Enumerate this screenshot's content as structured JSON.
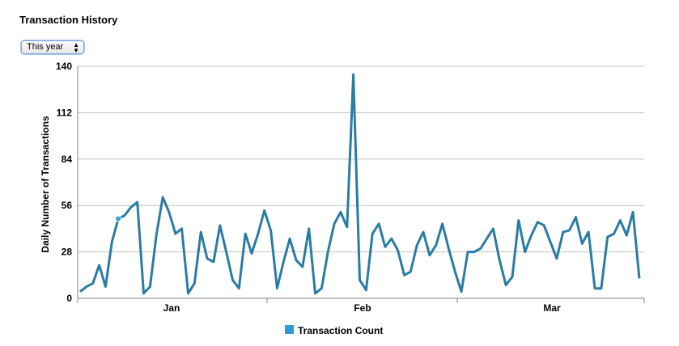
{
  "header": {
    "title": "Transaction History"
  },
  "period_select": {
    "value": "This year"
  },
  "colors": {
    "series": "#2b7ca3",
    "marker": "#3ea6d6",
    "legend": "#2f9bd6",
    "grid": "#c0c0c0"
  },
  "chart_data": {
    "type": "line",
    "title": "",
    "xlabel": "",
    "ylabel": "Daily Number of Transactions",
    "ylim": [
      0,
      140
    ],
    "yticks": [
      0,
      28,
      56,
      84,
      112,
      140
    ],
    "x_month_labels": [
      "Jan",
      "Feb",
      "Mar"
    ],
    "grid": true,
    "legend_position": "bottom",
    "series": [
      {
        "name": "Transaction Count",
        "values": [
          4,
          7,
          9,
          20,
          7,
          34,
          48,
          50,
          55,
          58,
          3,
          7,
          38,
          61,
          52,
          39,
          42,
          3,
          9,
          40,
          24,
          22,
          44,
          28,
          11,
          6,
          39,
          27,
          39,
          53,
          41,
          6,
          22,
          36,
          23,
          19,
          42,
          3,
          6,
          28,
          45,
          52,
          43,
          135,
          11,
          5,
          39,
          45,
          31,
          36,
          29,
          14,
          16,
          32,
          40,
          26,
          32,
          45,
          30,
          16,
          4,
          28,
          28,
          30,
          36,
          42,
          23,
          8,
          13,
          47,
          28,
          38,
          46,
          44,
          34,
          24,
          40,
          41,
          49,
          33,
          40,
          6,
          6,
          37,
          39,
          47,
          38,
          52,
          12
        ],
        "highlight_index": 6
      }
    ]
  }
}
